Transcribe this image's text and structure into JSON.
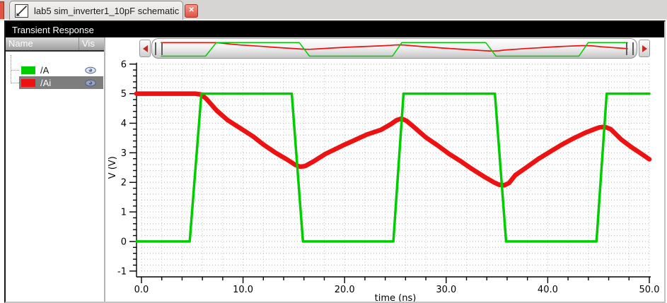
{
  "tab_bar": {
    "tab": {
      "icon": "schematic-window-icon",
      "title": "lab5 sim_inverter1_10pF schematic",
      "close_glyph": "✕"
    }
  },
  "header": {
    "title": "Transient Response"
  },
  "signal_panel": {
    "name_column": "Name",
    "vis_column": "Vis",
    "signals": [
      {
        "name": "/A",
        "color": "#00cd00",
        "visible": true,
        "selected": false
      },
      {
        "name": "/Ai",
        "color": "#ee1111",
        "visible": true,
        "selected": true
      }
    ]
  },
  "overview": {
    "left_arrow": "left",
    "right_arrow": "right"
  },
  "chart_data": {
    "type": "line",
    "title": "Transient Response",
    "xlabel": "time (ns)",
    "ylabel": "V (V)",
    "xlim": [
      0,
      50
    ],
    "ylim": [
      -1,
      6
    ],
    "x_major_ticks": [
      0,
      10,
      20,
      30,
      40,
      50
    ],
    "x_tick_labels": [
      "0.0",
      "10.0",
      "20.0",
      "30.0",
      "40.0",
      "50.0"
    ],
    "x_minor_step": 2,
    "y_major_ticks": [
      6,
      5,
      4,
      3,
      2,
      1,
      0,
      -1
    ],
    "y_tick_labels": [
      "6",
      "5",
      "4",
      "3",
      "2",
      "1",
      "0",
      "-1"
    ],
    "y_minor_step": 0.2,
    "grid": "dotted",
    "legend_position": "left-panel",
    "series": [
      {
        "name": "/A",
        "color": "#00cd00",
        "width": 3.5,
        "points": [
          [
            0,
            0
          ],
          [
            4.75,
            0
          ],
          [
            5.9,
            5
          ],
          [
            14.8,
            5
          ],
          [
            15.9,
            0
          ],
          [
            24.8,
            0
          ],
          [
            25.8,
            5
          ],
          [
            34.8,
            5
          ],
          [
            35.9,
            0
          ],
          [
            44.8,
            0
          ],
          [
            45.8,
            5
          ],
          [
            50,
            5
          ]
        ]
      },
      {
        "name": "/Ai",
        "color": "#ee1111",
        "width": 6.5,
        "points": [
          [
            0,
            5
          ],
          [
            5.3,
            5
          ],
          [
            5.9,
            4.97
          ],
          [
            6.4,
            4.82
          ],
          [
            7.4,
            4.43
          ],
          [
            8.5,
            4.1
          ],
          [
            9.7,
            3.84
          ],
          [
            11.0,
            3.55
          ],
          [
            12.0,
            3.28
          ],
          [
            13.2,
            3.0
          ],
          [
            14.4,
            2.76
          ],
          [
            15.1,
            2.6
          ],
          [
            15.6,
            2.53
          ],
          [
            16.1,
            2.55
          ],
          [
            16.9,
            2.7
          ],
          [
            18.1,
            2.96
          ],
          [
            19.9,
            3.26
          ],
          [
            20.8,
            3.4
          ],
          [
            22.2,
            3.62
          ],
          [
            23.6,
            3.78
          ],
          [
            24.6,
            3.98
          ],
          [
            25.1,
            4.1
          ],
          [
            25.6,
            4.16
          ],
          [
            26.1,
            4.08
          ],
          [
            26.8,
            3.88
          ],
          [
            28.0,
            3.52
          ],
          [
            29.2,
            3.24
          ],
          [
            30.3,
            2.96
          ],
          [
            31.5,
            2.7
          ],
          [
            32.6,
            2.44
          ],
          [
            33.7,
            2.2
          ],
          [
            34.7,
            2.0
          ],
          [
            35.2,
            1.92
          ],
          [
            35.7,
            1.9
          ],
          [
            36.2,
            1.98
          ],
          [
            36.8,
            2.24
          ],
          [
            38.0,
            2.53
          ],
          [
            39.1,
            2.8
          ],
          [
            40.3,
            3.05
          ],
          [
            41.4,
            3.28
          ],
          [
            42.6,
            3.5
          ],
          [
            43.7,
            3.68
          ],
          [
            44.6,
            3.8
          ],
          [
            45.1,
            3.86
          ],
          [
            45.6,
            3.88
          ],
          [
            46.2,
            3.8
          ],
          [
            47.2,
            3.46
          ],
          [
            48.2,
            3.2
          ],
          [
            49.2,
            2.97
          ],
          [
            50,
            2.78
          ]
        ]
      }
    ]
  }
}
